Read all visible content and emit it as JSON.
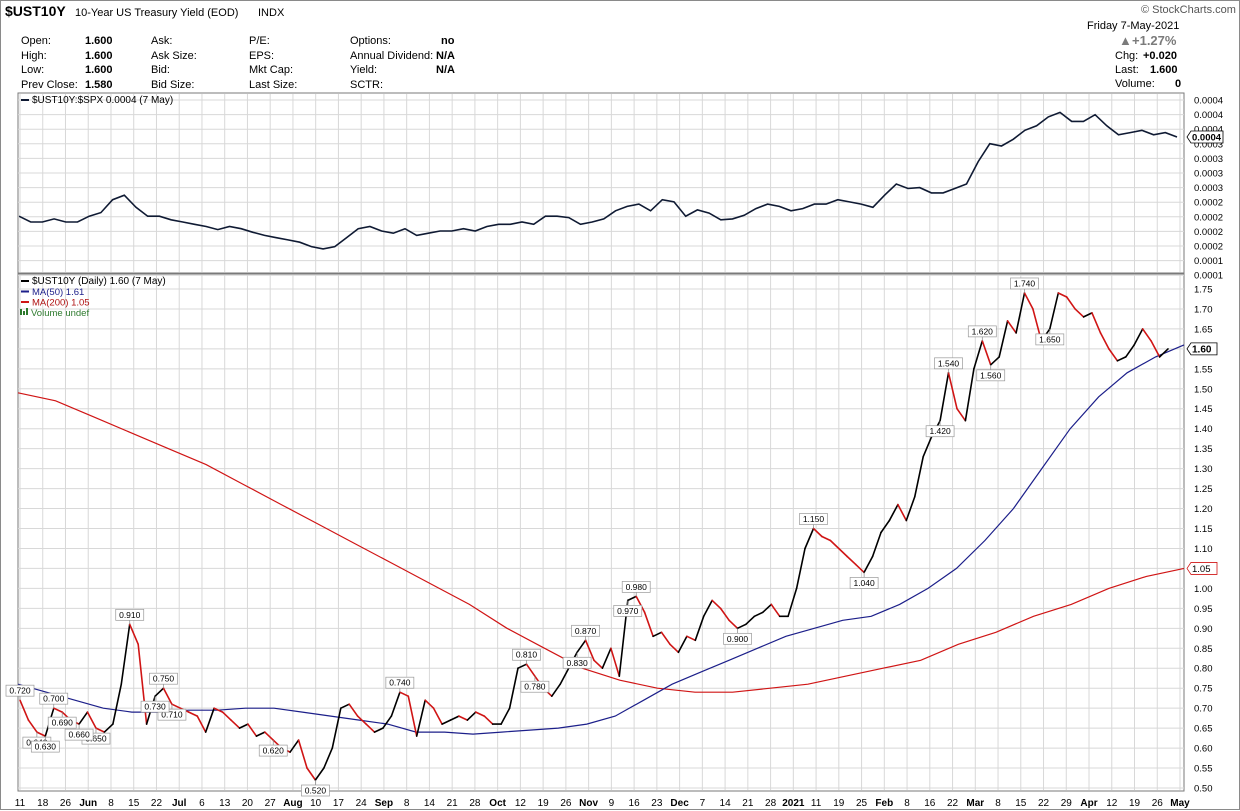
{
  "header": {
    "symbol": "$UST10Y",
    "name": "10-Year US Treasury Yield (EOD)",
    "exchange": "INDX",
    "brand": "© StockCharts.com",
    "date": "Friday 7-May-2021",
    "change_pct": "+1.27%",
    "chg_label": "Chg:",
    "chg_value": "+0.020",
    "last_label": "Last:",
    "last_value": "1.600",
    "volume_label": "Volume:",
    "volume_value": "0",
    "col1": [
      {
        "label": "Open:",
        "value": "1.600"
      },
      {
        "label": "High:",
        "value": "1.600"
      },
      {
        "label": "Low:",
        "value": "1.600"
      },
      {
        "label": "Prev Close:",
        "value": "1.580"
      }
    ],
    "col2": [
      {
        "label": "Ask:"
      },
      {
        "label": "Ask Size:"
      },
      {
        "label": "Bid:"
      },
      {
        "label": "Bid Size:"
      }
    ],
    "col3": [
      {
        "label": "P/E:"
      },
      {
        "label": "EPS:"
      },
      {
        "label": "Mkt Cap:"
      },
      {
        "label": "Last Size:"
      }
    ],
    "col4": [
      {
        "label": "Options:",
        "value": "no"
      },
      {
        "label": "Annual Dividend:",
        "value": "N/A"
      },
      {
        "label": "Yield:",
        "value": "N/A"
      },
      {
        "label": "SCTR:",
        "value": ""
      }
    ]
  },
  "chart_data": [
    {
      "type": "line",
      "legend": "$UST10Y:$SPX 0.0004 (7 May)",
      "last_label": "0.0004",
      "ytick_labels": [
        "0.0004",
        "0.0004",
        "0.0004",
        "0.0003",
        "0.0003",
        "0.0003",
        "0.0003",
        "0.0002",
        "0.0002",
        "0.0002",
        "0.0002",
        "0.0001",
        "0.0001"
      ],
      "ylim": [
        0.0001,
        0.00048
      ],
      "y": [
        0.000218,
        0.000205,
        0.000205,
        0.000212,
        0.000205,
        0.000205,
        0.000218,
        0.000226,
        0.000255,
        0.000265,
        0.000238,
        0.000218,
        0.000218,
        0.00021,
        0.000205,
        0.0002,
        0.000195,
        0.000188,
        0.000195,
        0.00019,
        0.000182,
        0.000175,
        0.00017,
        0.000165,
        0.00016,
        0.00015,
        0.000145,
        0.00015,
        0.00017,
        0.00019,
        0.000195,
        0.000185,
        0.00018,
        0.00019,
        0.000175,
        0.00018,
        0.000185,
        0.000185,
        0.00019,
        0.000185,
        0.000195,
        0.0002,
        0.0002,
        0.000205,
        0.0002,
        0.000218,
        0.000218,
        0.000215,
        0.0002,
        0.000205,
        0.000212,
        0.00023,
        0.00024,
        0.000245,
        0.00023,
        0.000255,
        0.00025,
        0.000218,
        0.000232,
        0.000225,
        0.00021,
        0.000212,
        0.00022,
        0.000235,
        0.000245,
        0.00024,
        0.00023,
        0.000235,
        0.000245,
        0.000245,
        0.000255,
        0.00025,
        0.000245,
        0.000238,
        0.000265,
        0.00029,
        0.00028,
        0.000282,
        0.00027,
        0.00027,
        0.00028,
        0.00029,
        0.00034,
        0.00038,
        0.000375,
        0.00039,
        0.00041,
        0.00042,
        0.00044,
        0.00045,
        0.00043,
        0.00043,
        0.000445,
        0.00042,
        0.0004,
        0.000405,
        0.00041,
        0.0004,
        0.000405,
        0.000395
      ],
      "ticks": [
        "11",
        "18",
        "26",
        "Jun",
        "8",
        "15",
        "22",
        "Jul",
        "6",
        "13",
        "20",
        "27",
        "Aug",
        "10",
        "17",
        "24",
        "Sep",
        "8",
        "14",
        "21",
        "28",
        "Oct",
        "12",
        "19",
        "26",
        "Nov",
        "9",
        "16",
        "23",
        "Dec",
        "7",
        "14",
        "21",
        "28",
        "2021",
        "11",
        "19",
        "25",
        "Feb",
        "8",
        "16",
        "22",
        "Mar",
        "8",
        "15",
        "22",
        "29",
        "Apr",
        "12",
        "19",
        "26",
        "May"
      ]
    },
    {
      "type": "line",
      "legend": "$UST10Y (Daily) 1.60 (7 May)",
      "ma50_legend": "MA(50) 1.61",
      "ma200_legend": "MA(200) 1.05",
      "volume_legend": "Volume undef",
      "last_label": "1.60",
      "ma200_last_label": "1.05",
      "ylim": [
        0.5,
        1.77
      ],
      "yticks": [
        "1.75",
        "1.70",
        "1.65",
        "1.60",
        "1.55",
        "1.50",
        "1.45",
        "1.40",
        "1.35",
        "1.30",
        "1.25",
        "1.20",
        "1.15",
        "1.10",
        "1.05",
        "1.00",
        "0.95",
        "0.90",
        "0.85",
        "0.80",
        "0.75",
        "0.70",
        "0.65",
        "0.60",
        "0.55",
        "0.50"
      ],
      "ytick_values": [
        1.75,
        1.7,
        1.65,
        1.6,
        1.55,
        1.5,
        1.45,
        1.4,
        1.35,
        1.3,
        1.25,
        1.2,
        1.15,
        1.1,
        1.05,
        1.0,
        0.95,
        0.9,
        0.85,
        0.8,
        0.75,
        0.7,
        0.65,
        0.6,
        0.55,
        0.5
      ],
      "price": [
        0.72,
        0.67,
        0.64,
        0.63,
        0.7,
        0.69,
        0.67,
        0.66,
        0.69,
        0.65,
        0.64,
        0.66,
        0.76,
        0.91,
        0.86,
        0.66,
        0.73,
        0.75,
        0.71,
        0.7,
        0.69,
        0.68,
        0.64,
        0.7,
        0.69,
        0.67,
        0.65,
        0.66,
        0.63,
        0.64,
        0.62,
        0.6,
        0.59,
        0.62,
        0.55,
        0.52,
        0.55,
        0.6,
        0.7,
        0.71,
        0.68,
        0.66,
        0.64,
        0.65,
        0.68,
        0.74,
        0.73,
        0.63,
        0.72,
        0.7,
        0.66,
        0.67,
        0.68,
        0.67,
        0.69,
        0.68,
        0.66,
        0.66,
        0.7,
        0.8,
        0.81,
        0.78,
        0.75,
        0.73,
        0.76,
        0.8,
        0.84,
        0.87,
        0.82,
        0.8,
        0.85,
        0.78,
        0.97,
        0.98,
        0.94,
        0.88,
        0.89,
        0.86,
        0.84,
        0.88,
        0.87,
        0.93,
        0.97,
        0.95,
        0.92,
        0.9,
        0.91,
        0.93,
        0.94,
        0.96,
        0.93,
        0.93,
        1.0,
        1.1,
        1.15,
        1.13,
        1.12,
        1.1,
        1.08,
        1.06,
        1.04,
        1.08,
        1.14,
        1.17,
        1.21,
        1.17,
        1.23,
        1.33,
        1.38,
        1.42,
        1.54,
        1.45,
        1.42,
        1.55,
        1.62,
        1.56,
        1.58,
        1.67,
        1.64,
        1.74,
        1.7,
        1.62,
        1.65,
        1.74,
        1.73,
        1.7,
        1.68,
        1.69,
        1.64,
        1.6,
        1.57,
        1.58,
        1.61,
        1.65,
        1.62,
        1.58,
        1.6
      ],
      "ma50": [
        0.76,
        0.74,
        0.72,
        0.7,
        0.69,
        0.69,
        0.695,
        0.695,
        0.7,
        0.7,
        0.69,
        0.68,
        0.67,
        0.66,
        0.64,
        0.64,
        0.635,
        0.64,
        0.645,
        0.65,
        0.66,
        0.68,
        0.72,
        0.76,
        0.79,
        0.82,
        0.85,
        0.88,
        0.9,
        0.92,
        0.93,
        0.96,
        1.0,
        1.05,
        1.12,
        1.2,
        1.3,
        1.4,
        1.48,
        1.54,
        1.58,
        1.61
      ],
      "ma200": [
        1.49,
        1.47,
        1.43,
        1.39,
        1.35,
        1.31,
        1.26,
        1.21,
        1.16,
        1.11,
        1.06,
        1.01,
        0.96,
        0.9,
        0.85,
        0.8,
        0.77,
        0.75,
        0.74,
        0.74,
        0.75,
        0.76,
        0.78,
        0.8,
        0.82,
        0.86,
        0.89,
        0.93,
        0.96,
        1.0,
        1.03,
        1.05
      ],
      "annotations": [
        {
          "label": "0.700",
          "x": 0.7,
          "y": 0.7
        },
        {
          "label": "0.650",
          "x": 0.65,
          "y": 0.65
        },
        {
          "label": "0.910",
          "x": 0.91,
          "y": 0.91
        },
        {
          "label": "0.750",
          "x": 0.75,
          "y": 0.75
        },
        {
          "label": "0.690",
          "x": 0.69,
          "y": 0.69
        },
        {
          "label": "0.620",
          "x": 0.62,
          "y": 0.62
        },
        {
          "label": "0.520",
          "x": 0.52,
          "y": 0.52
        },
        {
          "label": "0.710",
          "x": 0.71,
          "y": 0.71
        },
        {
          "label": "0.640",
          "x": 0.64,
          "y": 0.64
        },
        {
          "label": "0.740",
          "x": 0.74,
          "y": 0.74
        },
        {
          "label": "0.720",
          "x": 0.72,
          "y": 0.72
        },
        {
          "label": "0.630",
          "x": 0.63,
          "y": 0.63
        },
        {
          "label": "0.660",
          "x": 0.66,
          "y": 0.66
        },
        {
          "label": "0.810",
          "x": 0.81,
          "y": 0.81
        },
        {
          "label": "0.730",
          "x": 0.73,
          "y": 0.73
        },
        {
          "label": "0.870",
          "x": 0.87,
          "y": 0.87
        },
        {
          "label": "0.780",
          "x": 0.78,
          "y": 0.78
        },
        {
          "label": "0.980",
          "x": 0.98,
          "y": 0.98
        },
        {
          "label": "0.830",
          "x": 0.83,
          "y": 0.83
        },
        {
          "label": "0.970",
          "x": 0.97,
          "y": 0.97
        },
        {
          "label": "0.900",
          "x": 0.9,
          "y": 0.9
        },
        {
          "label": "1.150",
          "x": 1.15,
          "y": 1.15
        },
        {
          "label": "1.040",
          "x": 1.04,
          "y": 1.04
        },
        {
          "label": "1.540",
          "x": 1.54,
          "y": 1.54
        },
        {
          "label": "1.420",
          "x": 1.42,
          "y": 1.42
        },
        {
          "label": "1.740",
          "x": 1.74,
          "y": 1.74
        },
        {
          "label": "1.620",
          "x": 1.62,
          "y": 1.62
        },
        {
          "label": "1.560",
          "x": 1.56,
          "y": 1.56
        },
        {
          "label": "1.650",
          "x": 1.65,
          "y": 1.65
        }
      ]
    }
  ],
  "colors": {
    "price_up": "#000000",
    "price_down": "#d01515",
    "ma50": "#1c1f8a",
    "ma200": "#d01515",
    "ratio": "#0f1a33",
    "grid": "#d8d8d8",
    "axis": "#7a7a7a",
    "last_box_bg": "#ffffff"
  }
}
